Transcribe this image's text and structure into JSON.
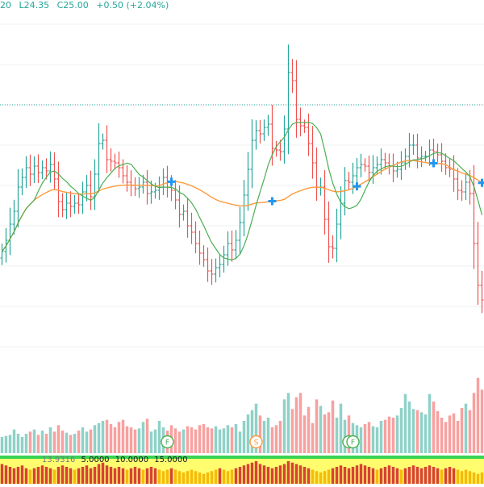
{
  "legend": {
    "open_fragment": "20",
    "low": "L24.35",
    "close": "C25.00",
    "change": "+0.50 (+2.04%)"
  },
  "indicator": {
    "value": "13.9316",
    "levels": [
      "5.0000",
      "10.0000",
      "15.0000"
    ]
  },
  "colors": {
    "up": "#26a69a",
    "down": "#ef5350",
    "up_volume": "#8fd1c8",
    "down_volume": "#f7a1a0",
    "fast_ma": "#4caf50",
    "slow_ma": "#ff9a3c",
    "cross_marker": "#2196f3",
    "grid": "#eef0f3",
    "dotted_level": "#26a69a"
  },
  "chart_data": {
    "type": "ohlc",
    "price_range": [
      16,
      37
    ],
    "dotted_level": 31.0,
    "series_count": 120,
    "overlays": [
      "fast moving average",
      "slow moving average"
    ],
    "markers": {
      "cross_bars": [
        42,
        67,
        88,
        107,
        119
      ],
      "signal_badges": [
        {
          "label": "F",
          "bar": 41
        },
        {
          "label": "S",
          "bar": 63
        },
        {
          "label": "C",
          "bar": 86
        },
        {
          "label": "F",
          "bar": 87
        }
      ]
    },
    "closes": [
      21.9,
      22.6,
      23.6,
      24.4,
      25.9,
      26.5,
      27.1,
      26.7,
      27.2,
      26.8,
      27.1,
      26.9,
      27.3,
      26.4,
      25.0,
      24.5,
      24.9,
      24.7,
      24.9,
      24.8,
      25.6,
      26.0,
      25.3,
      26.7,
      28.6,
      28.8,
      27.6,
      27.5,
      27.4,
      27.1,
      26.6,
      26.2,
      26.0,
      25.8,
      25.9,
      26.2,
      25.5,
      25.6,
      25.7,
      25.9,
      26.5,
      25.9,
      25.7,
      25.1,
      24.2,
      24.4,
      23.5,
      23.1,
      22.4,
      21.8,
      21.4,
      20.7,
      20.5,
      20.9,
      21.1,
      21.7,
      22.4,
      22.0,
      22.6,
      23.7,
      25.4,
      27.0,
      28.8,
      29.4,
      29.2,
      29.6,
      29.8,
      28.3,
      28.2,
      28.1,
      29.5,
      33.0,
      32.5,
      30.1,
      29.7,
      29.6,
      28.6,
      27.4,
      25.9,
      25.9,
      23.9,
      22.2,
      22.1,
      23.6,
      24.9,
      26.3,
      26.2,
      26.6,
      27.1,
      27.3,
      27.2,
      26.8,
      27.1,
      27.3,
      27.6,
      27.4,
      27.2,
      26.9,
      27.0,
      27.4,
      27.8,
      28.5,
      28.5,
      27.7,
      27.8,
      27.8,
      28.2,
      28.1,
      27.9,
      27.5,
      27.1,
      27.0,
      26.4,
      25.7,
      25.6,
      26.2,
      25.5,
      22.4,
      19.8,
      18.9
    ],
    "volume_range": [
      0,
      180
    ],
    "volumes": [
      30,
      32,
      34,
      44,
      36,
      30,
      36,
      40,
      44,
      34,
      42,
      36,
      48,
      40,
      52,
      42,
      38,
      34,
      36,
      42,
      48,
      40,
      44,
      52,
      56,
      60,
      62,
      54,
      48,
      58,
      62,
      50,
      48,
      44,
      46,
      58,
      64,
      40,
      44,
      60,
      48,
      42,
      52,
      46,
      40,
      44,
      50,
      48,
      44,
      52,
      54,
      48,
      46,
      50,
      44,
      46,
      52,
      48,
      54,
      40,
      60,
      72,
      80,
      92,
      70,
      60,
      66,
      48,
      52,
      60,
      100,
      112,
      82,
      104,
      112,
      70,
      86,
      56,
      100,
      88,
      72,
      76,
      98,
      66,
      92,
      62,
      70,
      56,
      52,
      48,
      54,
      58,
      50,
      48,
      60,
      62,
      68,
      66,
      70,
      84,
      110,
      96,
      82,
      80,
      76,
      72,
      110,
      96,
      78,
      66,
      58,
      70,
      74,
      60,
      84,
      92,
      80,
      112,
      140,
      118
    ],
    "oscillator_range": [
      0,
      20
    ],
    "oscillator": [
      14,
      13,
      12,
      11,
      12,
      13,
      11,
      10,
      11,
      12,
      13,
      12,
      11,
      10,
      12,
      13,
      12,
      11,
      10,
      11,
      12,
      13,
      11,
      12,
      14,
      15,
      13,
      12,
      11,
      12,
      11,
      10,
      11,
      12,
      11,
      10,
      11,
      12,
      11,
      10,
      9,
      10,
      11,
      10,
      9,
      8,
      9,
      10,
      9,
      8,
      7,
      8,
      9,
      10,
      11,
      10,
      9,
      10,
      11,
      12,
      13,
      14,
      15,
      16,
      14,
      13,
      12,
      11,
      12,
      13,
      14,
      16,
      15,
      14,
      13,
      12,
      11,
      10,
      9,
      8,
      9,
      10,
      11,
      12,
      13,
      12,
      11,
      12,
      13,
      14,
      13,
      12,
      11,
      10,
      11,
      12,
      13,
      12,
      11,
      10,
      11,
      12,
      13,
      12,
      11,
      12,
      13,
      12,
      11,
      10,
      11,
      12,
      11,
      10,
      9,
      10,
      9,
      8,
      7,
      8
    ]
  }
}
